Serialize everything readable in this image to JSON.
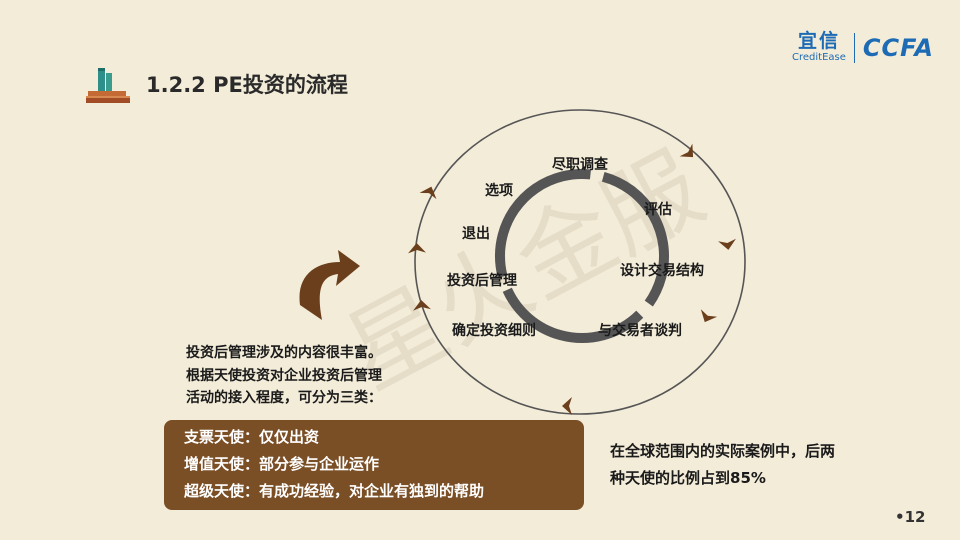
{
  "header": {
    "title": "1.2.2 PE投资的流程",
    "icon": "books-icon"
  },
  "logo": {
    "cn": "宜信",
    "en": "CreditEase",
    "right": "CCFA"
  },
  "watermark": "星火金服",
  "cycle": {
    "steps": [
      "尽职调查",
      "评估",
      "设计交易结构",
      "与交易者谈判",
      "确定投资细则",
      "投资后管理",
      "退出",
      "选项"
    ]
  },
  "description": {
    "lines": [
      "投资后管理涉及的内容很丰富。",
      "根据天使投资对企业投资后管理",
      "活动的接入程度，可分为三类："
    ]
  },
  "angel_types": {
    "items": [
      "支票天使：仅仅出资",
      "增值天使：部分参与企业运作",
      "超级天使：有成功经验，对企业有独到的帮助"
    ]
  },
  "note": {
    "lines": [
      "在全球范围内的实际案例中，后两",
      "种天使的比例占到85%"
    ]
  },
  "page": {
    "number": "•12"
  },
  "colors": {
    "background": "#f3ecd9",
    "box": "#7b4f26",
    "arrow": "#6b3f1c",
    "ring": "#555555",
    "logo": "#1d6bb5"
  }
}
